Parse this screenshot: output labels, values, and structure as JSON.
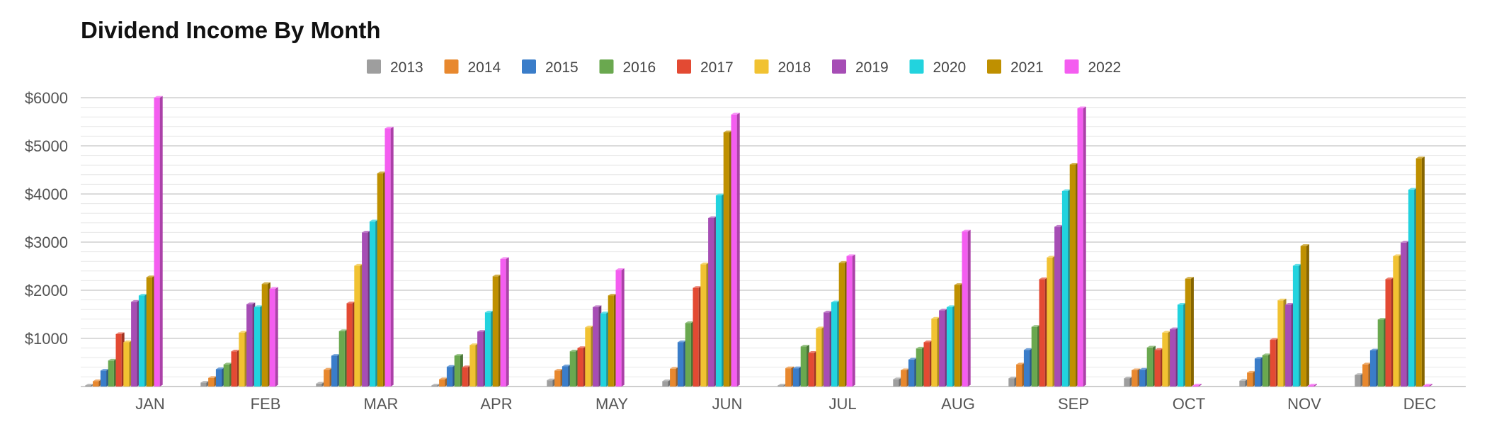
{
  "chart_data": {
    "type": "bar",
    "title": "Dividend Income By Month",
    "xlabel": "",
    "ylabel": "",
    "ylim": [
      0,
      6000
    ],
    "yticks": [
      "$1000",
      "$2000",
      "$3000",
      "$4000",
      "$5000",
      "$6000"
    ],
    "grid": true,
    "legend_position": "top",
    "categories": [
      "JAN",
      "FEB",
      "MAR",
      "APR",
      "MAY",
      "JUN",
      "JUL",
      "AUG",
      "SEP",
      "OCT",
      "NOV",
      "DEC"
    ],
    "series": [
      {
        "name": "2013",
        "color": "#9e9e9e",
        "values": [
          10,
          80,
          60,
          10,
          130,
          110,
          20,
          150,
          170,
          170,
          120,
          240
        ]
      },
      {
        "name": "2014",
        "color": "#e8882e",
        "values": [
          110,
          180,
          350,
          150,
          330,
          370,
          380,
          340,
          460,
          340,
          290,
          460
        ]
      },
      {
        "name": "2015",
        "color": "#3a7dc9",
        "values": [
          330,
          360,
          640,
          410,
          420,
          920,
          380,
          560,
          760,
          350,
          580,
          750
        ]
      },
      {
        "name": "2016",
        "color": "#6aa84f",
        "values": [
          540,
          460,
          1150,
          640,
          730,
          1320,
          830,
          790,
          1240,
          810,
          650,
          1390
        ]
      },
      {
        "name": "2017",
        "color": "#e34a33",
        "values": [
          1090,
          730,
          1730,
          400,
          800,
          2050,
          700,
          920,
          2230,
          760,
          970,
          2230
        ]
      },
      {
        "name": "2018",
        "color": "#f1c232",
        "values": [
          920,
          1120,
          2510,
          860,
          1230,
          2540,
          1210,
          1410,
          2680,
          1120,
          1790,
          2710
        ]
      },
      {
        "name": "2019",
        "color": "#a64db5",
        "values": [
          1760,
          1710,
          3200,
          1140,
          1650,
          3500,
          1540,
          1580,
          3320,
          1190,
          1700,
          2990
        ]
      },
      {
        "name": "2020",
        "color": "#22d3de",
        "values": [
          1890,
          1650,
          3430,
          1540,
          1520,
          3970,
          1750,
          1650,
          4060,
          1700,
          2510,
          4090
        ]
      },
      {
        "name": "2021",
        "color": "#bf9000",
        "values": [
          2270,
          2130,
          4430,
          2290,
          1890,
          5280,
          2570,
          2110,
          4610,
          2240,
          2920,
          4740
        ]
      },
      {
        "name": "2022",
        "color": "#f45df0",
        "values": [
          6000,
          2030,
          5360,
          2650,
          2420,
          5650,
          2710,
          3220,
          5780,
          0,
          0,
          0
        ]
      }
    ]
  }
}
